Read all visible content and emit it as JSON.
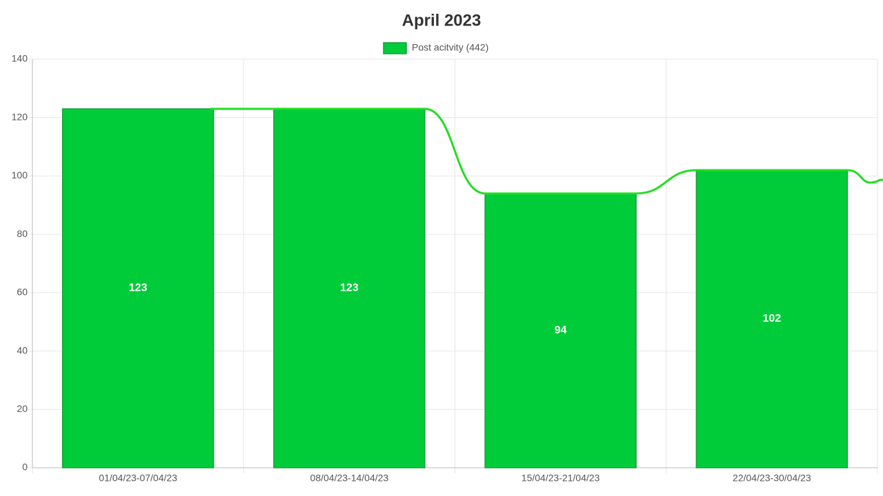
{
  "chart_data": {
    "type": "bar",
    "title": "April 2023",
    "categories": [
      "01/04/23-07/04/23",
      "08/04/23-14/04/23",
      "15/04/23-21/04/23",
      "22/04/23-30/04/23"
    ],
    "series": [
      {
        "name": "Post acitvity (442)",
        "color": "#00cc3a",
        "values": [
          123,
          123,
          94,
          102
        ]
      }
    ],
    "ylim": [
      0,
      140
    ],
    "yticks": [
      0,
      20,
      40,
      60,
      80,
      100,
      120,
      140
    ],
    "grid": true,
    "legend": "top"
  }
}
